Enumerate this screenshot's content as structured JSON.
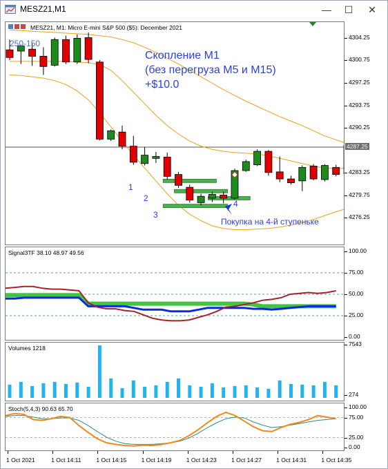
{
  "window": {
    "title": "MESZ21,M1",
    "buttons": {
      "minimize": "—",
      "maximize": "☐",
      "close": "✕"
    }
  },
  "main_chart": {
    "header": "MESZ21, M1:  Micro E-mini S&P 500 ($5): December 2021",
    "left_label": "250-150",
    "annotation": {
      "line1": "Скопление М1",
      "line2": "(без перегруза М5 и М15)",
      "line3": "+$10.0"
    },
    "steps": [
      "1",
      "2",
      "3",
      "4"
    ],
    "buy_note": "Покупка на 4-й ступеньке",
    "price_labels": [
      "4304.25",
      "4300.75",
      "4297.25",
      "4293.75",
      "4290.25",
      "4283.25",
      "4279.75",
      "4276.25"
    ],
    "current_price": "4287.25"
  },
  "signal_pane": {
    "header": "Signal3TF 38.10 48.97 49.56",
    "levels": [
      "100.00",
      "75.00",
      "50.00",
      "25.00",
      "0.00"
    ]
  },
  "volume_pane": {
    "header": "Volumes 1218",
    "levels": [
      "7543",
      "274"
    ]
  },
  "stoch_pane": {
    "header": "Stoch(5,4,3) 90.63 65.70",
    "levels": [
      "100.00",
      "75.00",
      "25.00",
      "0.00"
    ]
  },
  "time_axis": [
    "1 Oct 2021",
    "1 Oct 14:11",
    "1 Oct 14:15",
    "1 Oct 14:19",
    "1 Oct 14:23",
    "1 Oct 14:27",
    "1 Oct 14:31",
    "1 Oct 14:35"
  ],
  "chart_data": {
    "type": "candlestick",
    "colors": {
      "up": "#1e8a1e",
      "down": "#e00000",
      "bands": "#e8a21a",
      "signal_fast": "#a3222b",
      "signal_slow": "#0a2bd9",
      "signal_zone": "#44c244",
      "volume": "#22b4ee",
      "stoch_main": "#ee8a1a",
      "stoch_signal": "#2a8a8a"
    },
    "candles": [
      {
        "o": 4302.4,
        "h": 4304.0,
        "l": 4300.8,
        "c": 4301.2
      },
      {
        "o": 4302.2,
        "h": 4303.2,
        "l": 4300.2,
        "c": 4303.0
      },
      {
        "o": 4302.5,
        "h": 4303.4,
        "l": 4299.9,
        "c": 4301.4
      },
      {
        "o": 4301.4,
        "h": 4302.8,
        "l": 4298.5,
        "c": 4299.8
      },
      {
        "o": 4300.0,
        "h": 4304.3,
        "l": 4299.8,
        "c": 4304.0
      },
      {
        "o": 4304.0,
        "h": 4304.6,
        "l": 4300.2,
        "c": 4300.5
      },
      {
        "o": 4300.5,
        "h": 4304.8,
        "l": 4300.2,
        "c": 4304.2
      },
      {
        "o": 4304.3,
        "h": 4305.1,
        "l": 4300.3,
        "c": 4300.9
      },
      {
        "o": 4300.5,
        "h": 4300.8,
        "l": 4288.3,
        "c": 4288.5
      },
      {
        "o": 4288.5,
        "h": 4290.0,
        "l": 4288.2,
        "c": 4289.8
      },
      {
        "o": 4289.6,
        "h": 4290.6,
        "l": 4286.9,
        "c": 4287.4
      },
      {
        "o": 4287.4,
        "h": 4289.0,
        "l": 4284.5,
        "c": 4284.9
      },
      {
        "o": 4284.7,
        "h": 4287.3,
        "l": 4284.4,
        "c": 4286.0
      },
      {
        "o": 4285.5,
        "h": 4286.5,
        "l": 4284.8,
        "c": 4285.8
      },
      {
        "o": 4285.7,
        "h": 4286.4,
        "l": 4282.2,
        "c": 4282.7
      },
      {
        "o": 4283.0,
        "h": 4283.4,
        "l": 4280.9,
        "c": 4281.3
      },
      {
        "o": 4281.0,
        "h": 4281.4,
        "l": 4278.6,
        "c": 4279.0
      },
      {
        "o": 4278.6,
        "h": 4280.0,
        "l": 4278.2,
        "c": 4279.6
      },
      {
        "o": 4279.3,
        "h": 4280.3,
        "l": 4278.7,
        "c": 4279.9
      },
      {
        "o": 4279.8,
        "h": 4280.3,
        "l": 4278.5,
        "c": 4279.3
      },
      {
        "o": 4279.3,
        "h": 4283.9,
        "l": 4279.1,
        "c": 4283.6
      },
      {
        "o": 4283.6,
        "h": 4285.3,
        "l": 4283.4,
        "c": 4285.0
      },
      {
        "o": 4284.5,
        "h": 4286.9,
        "l": 4284.3,
        "c": 4286.6
      },
      {
        "o": 4286.6,
        "h": 4286.8,
        "l": 4282.8,
        "c": 4283.3
      },
      {
        "o": 4283.4,
        "h": 4285.8,
        "l": 4281.8,
        "c": 4282.3
      },
      {
        "o": 4282.3,
        "h": 4282.8,
        "l": 4281.4,
        "c": 4281.7
      },
      {
        "o": 4282.0,
        "h": 4284.4,
        "l": 4280.4,
        "c": 4284.1
      },
      {
        "o": 4284.3,
        "h": 4284.6,
        "l": 4282.1,
        "c": 4282.3
      },
      {
        "o": 4282.2,
        "h": 4284.6,
        "l": 4281.9,
        "c": 4284.4
      },
      {
        "o": 4284.1,
        "h": 4284.5,
        "l": 4282.7,
        "c": 4283.0
      },
      {
        "o": 4283.1,
        "h": 4287.8,
        "l": 4282.9,
        "c": 4287.5
      },
      {
        "o": 4287.4,
        "h": 4287.8,
        "l": 4283.0,
        "c": 4283.3
      },
      {
        "o": 4283.3,
        "h": 4286.4,
        "l": 4282.4,
        "c": 4286.1
      }
    ],
    "band_upper": [
      4305.5,
      4305.4,
      4305.3,
      4305.2,
      4305.1,
      4305.0,
      4304.9,
      4304.8,
      4304.6,
      4304.4,
      4304.0,
      4303.5,
      4302.8,
      4302.0,
      4301.1,
      4300.2,
      4299.2,
      4298.2,
      4297.2,
      4296.2,
      4295.3,
      4294.4,
      4293.6,
      4292.8,
      4292.0,
      4291.3,
      4290.6,
      4289.8,
      4289.0,
      4288.4,
      4287.8,
      4287.6,
      4287.4
    ],
    "band_middle": [
      4300.6,
      4300.6,
      4300.6,
      4300.6,
      4300.6,
      4300.6,
      4300.5,
      4300.4,
      4300.1,
      4299.2,
      4297.6,
      4295.8,
      4294.0,
      4292.2,
      4290.6,
      4289.3,
      4288.2,
      4287.4,
      4286.9,
      4286.6,
      4286.4,
      4286.3,
      4286.2,
      4285.9,
      4285.5,
      4285.1,
      4284.7,
      4284.3,
      4284.0,
      4283.9,
      4284.0,
      4284.2,
      4284.3
    ],
    "band_lower": [
      4298.5,
      4298.4,
      4298.2,
      4298.0,
      4297.6,
      4297.0,
      4296.0,
      4294.6,
      4292.6,
      4290.4,
      4288.2,
      4286.0,
      4284.0,
      4282.0,
      4280.0,
      4278.2,
      4276.8,
      4275.8,
      4275.0,
      4274.6,
      4274.4,
      4274.4,
      4274.5,
      4274.6,
      4274.8,
      4275.1,
      4275.5,
      4276.0,
      4276.6,
      4277.2,
      4277.7,
      4278.0,
      4278.2
    ],
    "levels": [
      {
        "price": 4282.0,
        "from": 14,
        "to": 18
      },
      {
        "price": 4280.4,
        "from": 15,
        "to": 19
      },
      {
        "price": 4279.3,
        "from": 18,
        "to": 21
      },
      {
        "price": 4278.1,
        "from": 14,
        "to": 19
      }
    ],
    "buy_marker_index": 20,
    "signal": {
      "fast": [
        57,
        58,
        59,
        59,
        57,
        56,
        56,
        55,
        54,
        40,
        35,
        33,
        33,
        31,
        30,
        26,
        22,
        20,
        19,
        19,
        20,
        23,
        26,
        30,
        35,
        36,
        38,
        40,
        43,
        44,
        46,
        50,
        51,
        52,
        51,
        52,
        54
      ],
      "slow": [
        45,
        45,
        46,
        46,
        46,
        46,
        46,
        46,
        46,
        36,
        36,
        36,
        36,
        36,
        34,
        32,
        32,
        32,
        30,
        30,
        30,
        32,
        34,
        34,
        34,
        34,
        34,
        33,
        33,
        32,
        33,
        34,
        35,
        36,
        36,
        36,
        36
      ],
      "zone": [
        49,
        49,
        49,
        49,
        49,
        49,
        49,
        49,
        49,
        39,
        39,
        39,
        39,
        39,
        39,
        39,
        39,
        39,
        39,
        39,
        39,
        39,
        39,
        39,
        39,
        39,
        39,
        38,
        36,
        36,
        36,
        36,
        36,
        36,
        36,
        36,
        36
      ],
      "ylim": [
        0,
        100
      ]
    },
    "volumes": [
      1900,
      2300,
      1700,
      2100,
      2300,
      2000,
      2200,
      1600,
      7543,
      2800,
      1400,
      2500,
      1600,
      1800,
      2300,
      2800,
      1800,
      1600,
      2100,
      1500,
      1700,
      1800,
      1500,
      1300,
      2500,
      2000,
      1900,
      1800,
      2300,
      1800,
      1500,
      2600,
      2300,
      2000,
      2100
    ],
    "stoch": {
      "main": [
        80,
        85,
        83,
        70,
        68,
        72,
        78,
        75,
        55,
        38,
        22,
        12,
        8,
        5,
        4,
        6,
        5,
        8,
        12,
        18,
        30,
        45,
        62,
        78,
        88,
        80,
        66,
        52,
        42,
        40,
        50,
        58,
        63,
        70,
        80,
        76,
        72
      ],
      "signal": [
        78,
        80,
        80,
        76,
        72,
        72,
        74,
        74,
        68,
        55,
        40,
        26,
        16,
        10,
        8,
        8,
        8,
        10,
        12,
        16,
        24,
        36,
        50,
        62,
        72,
        76,
        74,
        64,
        56,
        50,
        52,
        56,
        60,
        64,
        68,
        70,
        72
      ],
      "ylim": [
        0,
        100
      ]
    }
  }
}
